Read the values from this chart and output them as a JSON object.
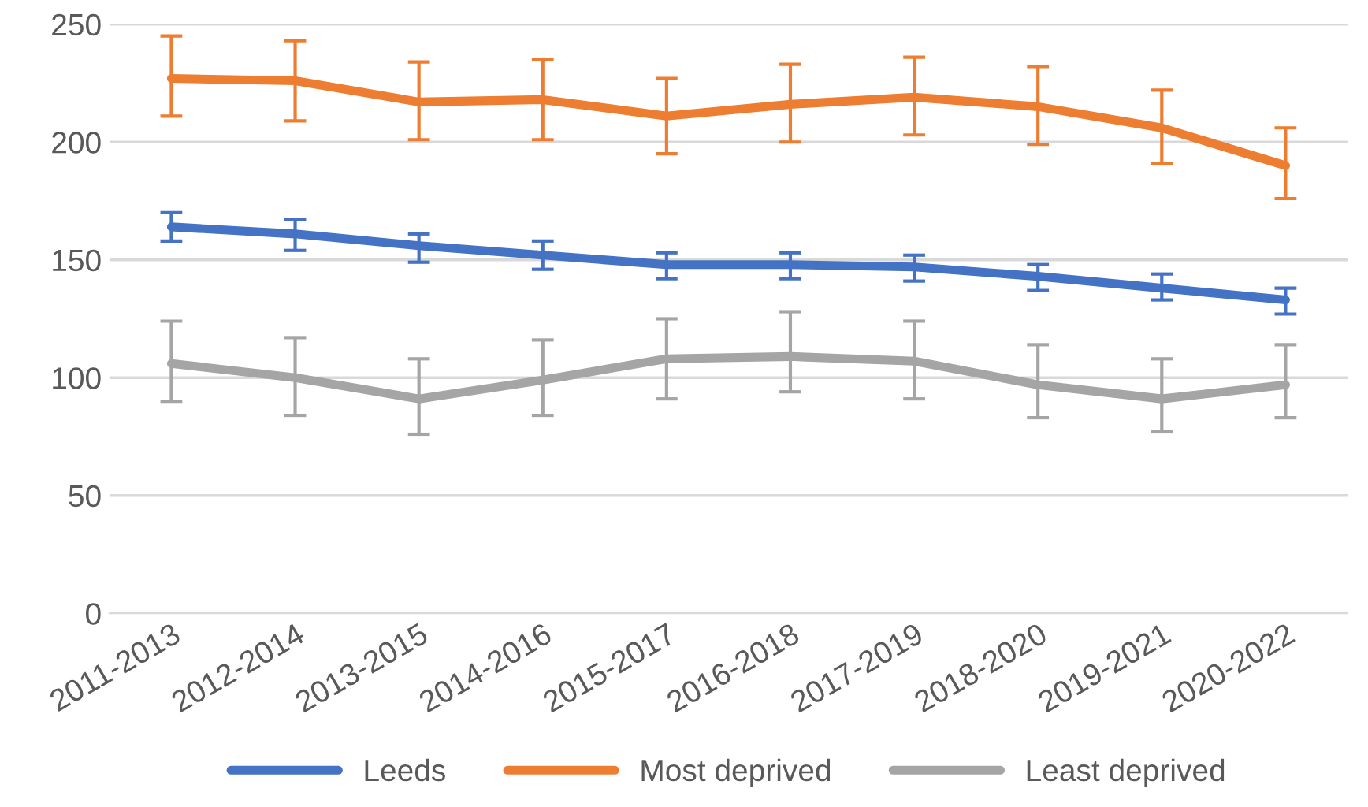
{
  "chart_data": {
    "type": "line",
    "categories": [
      "2011-2013",
      "2012-2014",
      "2013-2015",
      "2014-2016",
      "2015-2017",
      "2016-2018",
      "2017-2019",
      "2018-2020",
      "2019-2021",
      "2020-2022"
    ],
    "series": [
      {
        "name": "Leeds",
        "color": "#4472c4",
        "values": [
          164,
          161,
          156,
          152,
          148,
          148,
          147,
          143,
          138,
          133
        ],
        "errors": [
          [
            158,
            170
          ],
          [
            154,
            167
          ],
          [
            149,
            161
          ],
          [
            146,
            158
          ],
          [
            142,
            153
          ],
          [
            142,
            153
          ],
          [
            141,
            152
          ],
          [
            137,
            148
          ],
          [
            133,
            144
          ],
          [
            127,
            138
          ]
        ]
      },
      {
        "name": "Most deprived",
        "color": "#ed7d31",
        "values": [
          227,
          226,
          217,
          218,
          211,
          216,
          219,
          215,
          206,
          190
        ],
        "errors": [
          [
            211,
            245
          ],
          [
            209,
            243
          ],
          [
            201,
            234
          ],
          [
            201,
            235
          ],
          [
            195,
            227
          ],
          [
            200,
            233
          ],
          [
            203,
            236
          ],
          [
            199,
            232
          ],
          [
            191,
            222
          ],
          [
            176,
            206
          ]
        ]
      },
      {
        "name": "Least deprived",
        "color": "#a5a5a5",
        "values": [
          106,
          100,
          91,
          99,
          108,
          109,
          107,
          97,
          91,
          97
        ],
        "errors": [
          [
            90,
            124
          ],
          [
            84,
            117
          ],
          [
            76,
            108
          ],
          [
            84,
            116
          ],
          [
            91,
            125
          ],
          [
            94,
            128
          ],
          [
            91,
            124
          ],
          [
            83,
            114
          ],
          [
            77,
            108
          ],
          [
            83,
            114
          ]
        ]
      }
    ],
    "ylim": [
      0,
      250
    ],
    "yticks": [
      0,
      50,
      100,
      150,
      200,
      250
    ],
    "grid": "y",
    "legend": "bottom",
    "marker": "none",
    "line_style": "solid"
  }
}
